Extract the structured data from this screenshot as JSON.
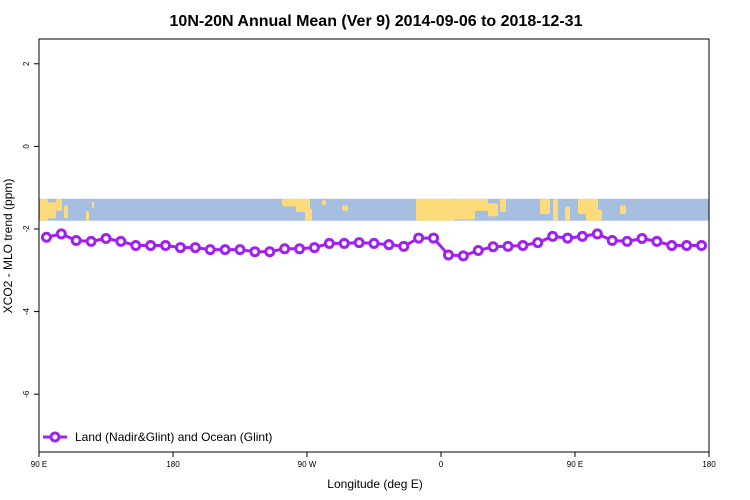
{
  "chart_data": {
    "type": "line",
    "title": "10N-20N Annual Mean (Ver 9)   2014-09-06 to 2018-12-31",
    "xlabel": "Longitude (deg E)",
    "ylabel": "XCO2 - MLO trend (ppm)",
    "x_ticks": [
      {
        "value": 90,
        "label": "90 E"
      },
      {
        "value": 180,
        "label": "180"
      },
      {
        "value": 270,
        "label": "90 W"
      },
      {
        "value": 360,
        "label": "0"
      },
      {
        "value": 450,
        "label": "90 E"
      },
      {
        "value": 540,
        "label": "180"
      }
    ],
    "y_ticks": [
      {
        "value": 2,
        "label": "2"
      },
      {
        "value": 0,
        "label": "0"
      },
      {
        "value": -2,
        "label": "-2"
      },
      {
        "value": -4,
        "label": "-4"
      },
      {
        "value": -6,
        "label": "-6"
      }
    ],
    "xlim": [
      90,
      540
    ],
    "ylim": [
      -7.4,
      2.6
    ],
    "grid": false,
    "legend_position": "bottom-left",
    "colors": {
      "series": "#a020f0",
      "land": "#fddb7a",
      "ocean": "#a6bedf"
    },
    "map_band": {
      "y_range": [
        -1.8,
        -1.27
      ]
    },
    "series": [
      {
        "name": "Land (Nadir&Glint) and Ocean (Glint)",
        "x": [
          95,
          105,
          115,
          125,
          135,
          145,
          155,
          165,
          175,
          185,
          195,
          205,
          215,
          225,
          235,
          245,
          255,
          265,
          275,
          285,
          295,
          305,
          315,
          325,
          335,
          345,
          355,
          365,
          375,
          385,
          395,
          405,
          415,
          425,
          435,
          445,
          455,
          465,
          475,
          485,
          495,
          505,
          515,
          525,
          535
        ],
        "y": [
          -2.2,
          -2.12,
          -2.28,
          -2.3,
          -2.23,
          -2.3,
          -2.4,
          -2.4,
          -2.4,
          -2.45,
          -2.45,
          -2.5,
          -2.5,
          -2.5,
          -2.55,
          -2.55,
          -2.48,
          -2.48,
          -2.45,
          -2.35,
          -2.35,
          -2.33,
          -2.35,
          -2.38,
          -2.42,
          -2.22,
          -2.22,
          -2.63,
          -2.65,
          -2.52,
          -2.43,
          -2.42,
          -2.4,
          -2.33,
          -2.18,
          -2.22,
          -2.18,
          -2.12,
          -2.28,
          -2.3,
          -2.23,
          -2.3,
          -2.4,
          -2.4,
          -2.4
        ]
      }
    ]
  }
}
